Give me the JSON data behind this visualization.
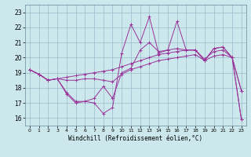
{
  "xlabel": "Windchill (Refroidissement éolien,°C)",
  "xlim": [
    -0.5,
    23.5
  ],
  "ylim": [
    15.5,
    23.5
  ],
  "yticks": [
    16,
    17,
    18,
    19,
    20,
    21,
    22,
    23
  ],
  "xticks": [
    0,
    1,
    2,
    3,
    4,
    5,
    6,
    7,
    8,
    9,
    10,
    11,
    12,
    13,
    14,
    15,
    16,
    17,
    18,
    19,
    20,
    21,
    22,
    23
  ],
  "background_color": "#cce8ec",
  "line_color": "#993399",
  "grid_color": "#99bbcc",
  "series": [
    [
      19.2,
      18.9,
      18.5,
      18.6,
      17.6,
      17.0,
      17.1,
      17.0,
      16.3,
      16.7,
      20.3,
      22.2,
      21.0,
      22.7,
      20.3,
      20.5,
      22.4,
      20.5,
      20.5,
      19.8,
      20.6,
      20.7,
      20.0,
      17.8
    ],
    [
      19.2,
      18.9,
      18.5,
      18.6,
      17.7,
      17.1,
      17.1,
      17.3,
      18.1,
      17.3,
      19.0,
      19.3,
      20.5,
      21.0,
      20.4,
      20.5,
      20.6,
      20.5,
      20.5,
      19.8,
      20.6,
      20.7,
      20.0,
      17.8
    ],
    [
      19.2,
      18.9,
      18.5,
      18.6,
      18.5,
      18.5,
      18.6,
      18.6,
      18.5,
      18.4,
      18.9,
      19.2,
      19.4,
      19.6,
      19.8,
      19.9,
      20.0,
      20.1,
      20.2,
      19.8,
      20.1,
      20.2,
      20.0,
      15.9
    ],
    [
      19.2,
      18.9,
      18.5,
      18.6,
      18.7,
      18.8,
      18.9,
      19.0,
      19.1,
      19.2,
      19.4,
      19.6,
      19.8,
      20.0,
      20.2,
      20.3,
      20.4,
      20.5,
      20.5,
      19.9,
      20.4,
      20.5,
      20.0,
      15.9
    ]
  ]
}
